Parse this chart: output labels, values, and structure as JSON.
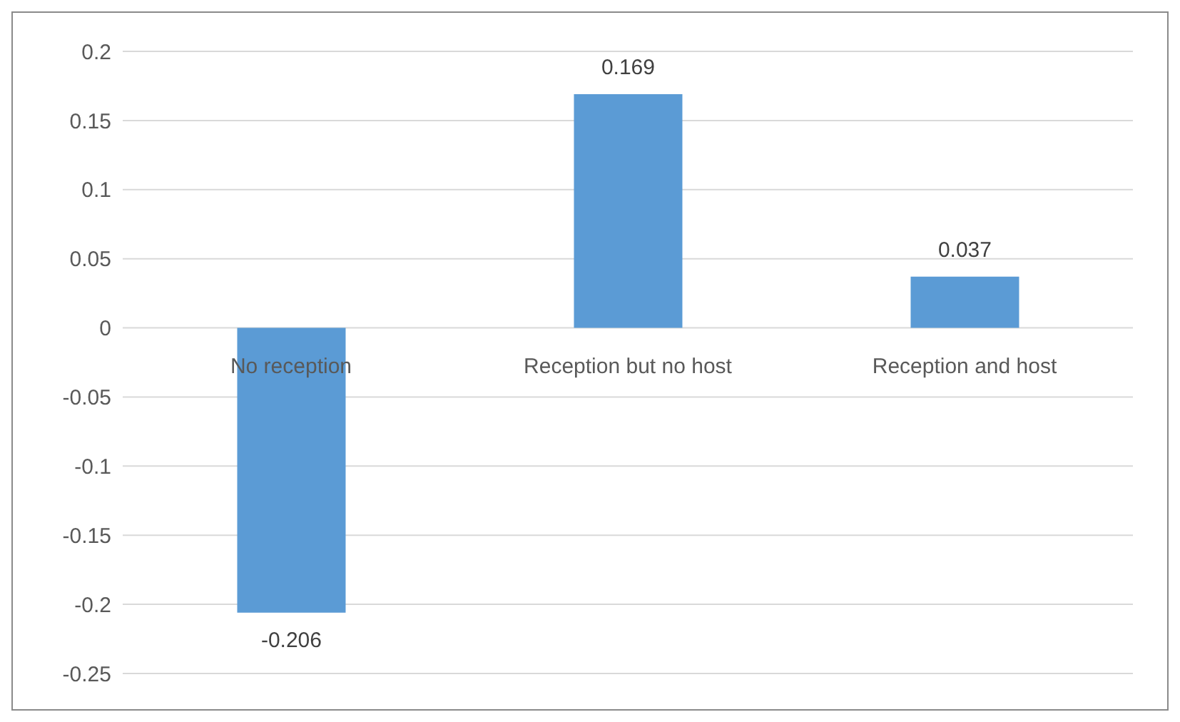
{
  "chart_data": {
    "type": "bar",
    "categories": [
      "No reception",
      "Reception but no host",
      "Reception and host"
    ],
    "values": [
      -0.206,
      0.169,
      0.037
    ],
    "color": "#5b9bd5",
    "data_labels": true,
    "ylim": [
      -0.25,
      0.2
    ],
    "yticks": [
      -0.25,
      -0.2,
      -0.15,
      -0.1,
      -0.05,
      0,
      0.05,
      0.1,
      0.15,
      0.2
    ],
    "grid": "y"
  }
}
